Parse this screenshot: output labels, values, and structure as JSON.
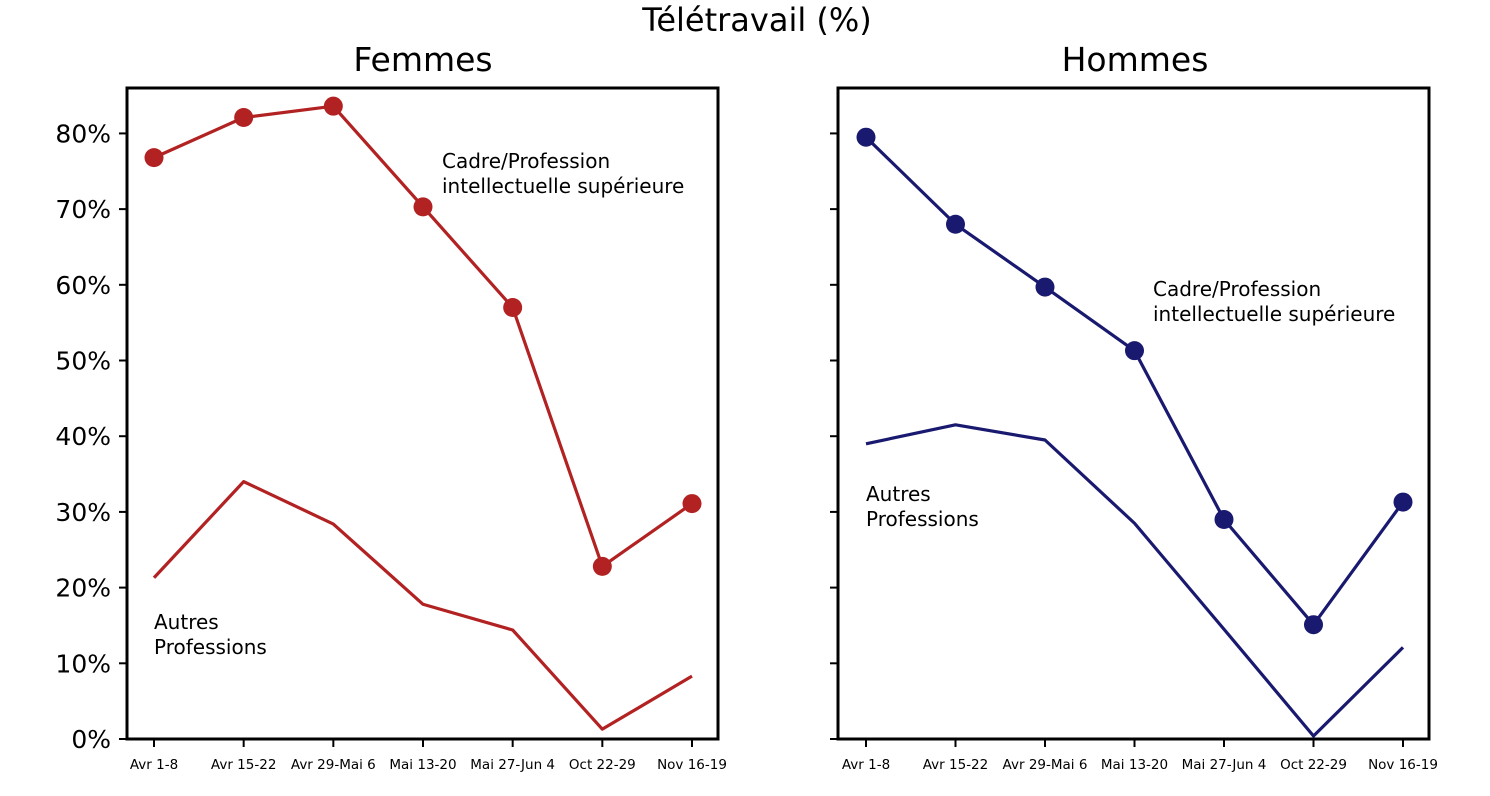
{
  "suptitle": "Télétravail (%)",
  "y_tick_labels": [
    "0%",
    "10%",
    "20%",
    "30%",
    "40%",
    "50%",
    "60%",
    "70%",
    "80%"
  ],
  "chart_data": [
    {
      "type": "line",
      "title": "Femmes",
      "categories": [
        "Avr 1-8",
        "Avr 15-22",
        "Avr 29-Mai 6",
        "Mai 13-20",
        "Mai 27-Jun 4",
        "Oct 22-29",
        "Nov 16-19"
      ],
      "ylim": [
        0,
        86
      ],
      "yticks": [
        0,
        10,
        20,
        30,
        40,
        50,
        60,
        70,
        80
      ],
      "grid": false,
      "color": "#b22222",
      "series": [
        {
          "name": "Cadre/Profession intellectuelle supérieure",
          "label_lines": [
            "Cadre/Profession",
            "intellectuelle supérieure"
          ],
          "markers": true,
          "values": [
            76.8,
            82.1,
            83.6,
            70.3,
            57.0,
            22.8,
            31.1
          ]
        },
        {
          "name": "Autres Professions",
          "label_lines": [
            "Autres",
            "Professions"
          ],
          "markers": false,
          "values": [
            21.3,
            34.0,
            28.4,
            17.8,
            14.4,
            1.3,
            8.3
          ]
        }
      ]
    },
    {
      "type": "line",
      "title": "Hommes",
      "categories": [
        "Avr 1-8",
        "Avr 15-22",
        "Avr 29-Mai 6",
        "Mai 13-20",
        "Mai 27-Jun 4",
        "Oct 22-29",
        "Nov 16-19"
      ],
      "ylim": [
        0,
        86
      ],
      "yticks": [
        0,
        10,
        20,
        30,
        40,
        50,
        60,
        70,
        80
      ],
      "grid": false,
      "color": "#191970",
      "series": [
        {
          "name": "Cadre/Profession intellectuelle supérieure",
          "label_lines": [
            "Cadre/Profession",
            "intellectuelle supérieure"
          ],
          "markers": true,
          "values": [
            79.5,
            68.0,
            59.7,
            51.3,
            29.0,
            15.1,
            31.3
          ]
        },
        {
          "name": "Autres Professions",
          "label_lines": [
            "Autres",
            "Professions"
          ],
          "markers": false,
          "values": [
            39.0,
            41.5,
            39.5,
            28.5,
            14.5,
            0.4,
            12.1
          ]
        }
      ]
    }
  ]
}
